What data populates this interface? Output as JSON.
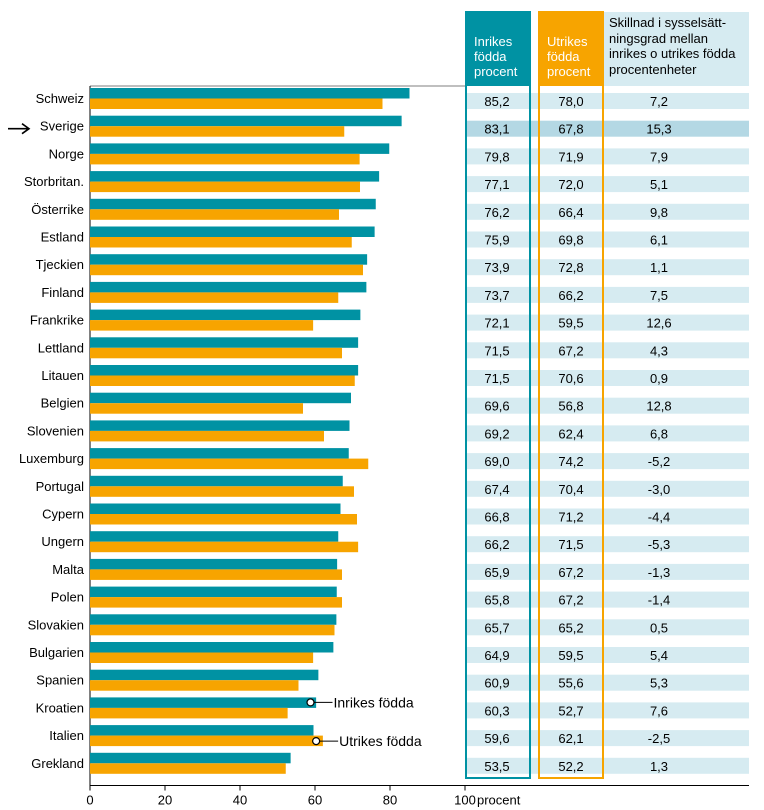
{
  "headers": {
    "inrikes": "Inrikes födda procent",
    "utrikes": "Utrikes födda procent",
    "diff": "Skillnad i sysselsätt-ningsgrad mellan inrikes o utrikes födda procentenheter"
  },
  "colors": {
    "inrikes": "#0092a3",
    "utrikes": "#f7a400",
    "row_light": "#d6ebf1",
    "row_highlight": "#b4d8e4"
  },
  "chart_data": {
    "type": "bar",
    "orientation": "horizontal",
    "categories": [
      "Schweiz",
      "Sverige",
      "Norge",
      "Storbritan.",
      "Österrike",
      "Estland",
      "Tjeckien",
      "Finland",
      "Frankrike",
      "Lettland",
      "Litauen",
      "Belgien",
      "Slovenien",
      "Luxemburg",
      "Portugal",
      "Cypern",
      "Ungern",
      "Malta",
      "Polen",
      "Slovakien",
      "Bulgarien",
      "Spanien",
      "Kroatien",
      "Italien",
      "Grekland"
    ],
    "highlight": "Sverige",
    "series": [
      {
        "name": "Inrikes födda",
        "values": [
          85.2,
          83.1,
          79.8,
          77.1,
          76.2,
          75.9,
          73.9,
          73.7,
          72.1,
          71.5,
          71.5,
          69.6,
          69.2,
          69.0,
          67.4,
          66.8,
          66.2,
          65.9,
          65.8,
          65.7,
          64.9,
          60.9,
          60.3,
          59.6,
          53.5
        ],
        "labels": [
          "85,2",
          "83,1",
          "79,8",
          "77,1",
          "76,2",
          "75,9",
          "73,9",
          "73,7",
          "72,1",
          "71,5",
          "71,5",
          "69,6",
          "69,2",
          "69,0",
          "67,4",
          "66,8",
          "66,2",
          "65,9",
          "65,8",
          "65,7",
          "64,9",
          "60,9",
          "60,3",
          "59,6",
          "53,5"
        ]
      },
      {
        "name": "Utrikes födda",
        "values": [
          78.0,
          67.8,
          71.9,
          72.0,
          66.4,
          69.8,
          72.8,
          66.2,
          59.5,
          67.2,
          70.6,
          56.8,
          62.4,
          74.2,
          70.4,
          71.2,
          71.5,
          67.2,
          67.2,
          65.2,
          59.5,
          55.6,
          52.7,
          62.1,
          52.2
        ],
        "labels": [
          "78,0",
          "67,8",
          "71,9",
          "72,0",
          "66,4",
          "69,8",
          "72,8",
          "66,2",
          "59,5",
          "67,2",
          "70,6",
          "56,8",
          "62,4",
          "74,2",
          "70,4",
          "71,2",
          "71,5",
          "67,2",
          "67,2",
          "65,2",
          "59,5",
          "55,6",
          "52,7",
          "62,1",
          "52,2"
        ]
      }
    ],
    "difference_labels": [
      "7,2",
      "15,3",
      "7,9",
      "5,1",
      "9,8",
      "6,1",
      "1,1",
      "7,5",
      "12,6",
      "4,3",
      "0,9",
      "12,8",
      "6,8",
      "-5,2",
      "-3,0",
      "-4,4",
      "-5,3",
      "-1,3",
      "-1,4",
      "0,5",
      "5,4",
      "5,3",
      "7,6",
      "-2,5",
      "1,3"
    ],
    "x_ticks": [
      0,
      20,
      40,
      60,
      80,
      100
    ],
    "x_tick_labels": [
      "0",
      "20",
      "40",
      "60",
      "80",
      "100"
    ],
    "xlim": [
      0,
      100
    ],
    "x_unit": "procent",
    "annotations": [
      "Inrikes födda",
      "Utrikes födda"
    ]
  }
}
